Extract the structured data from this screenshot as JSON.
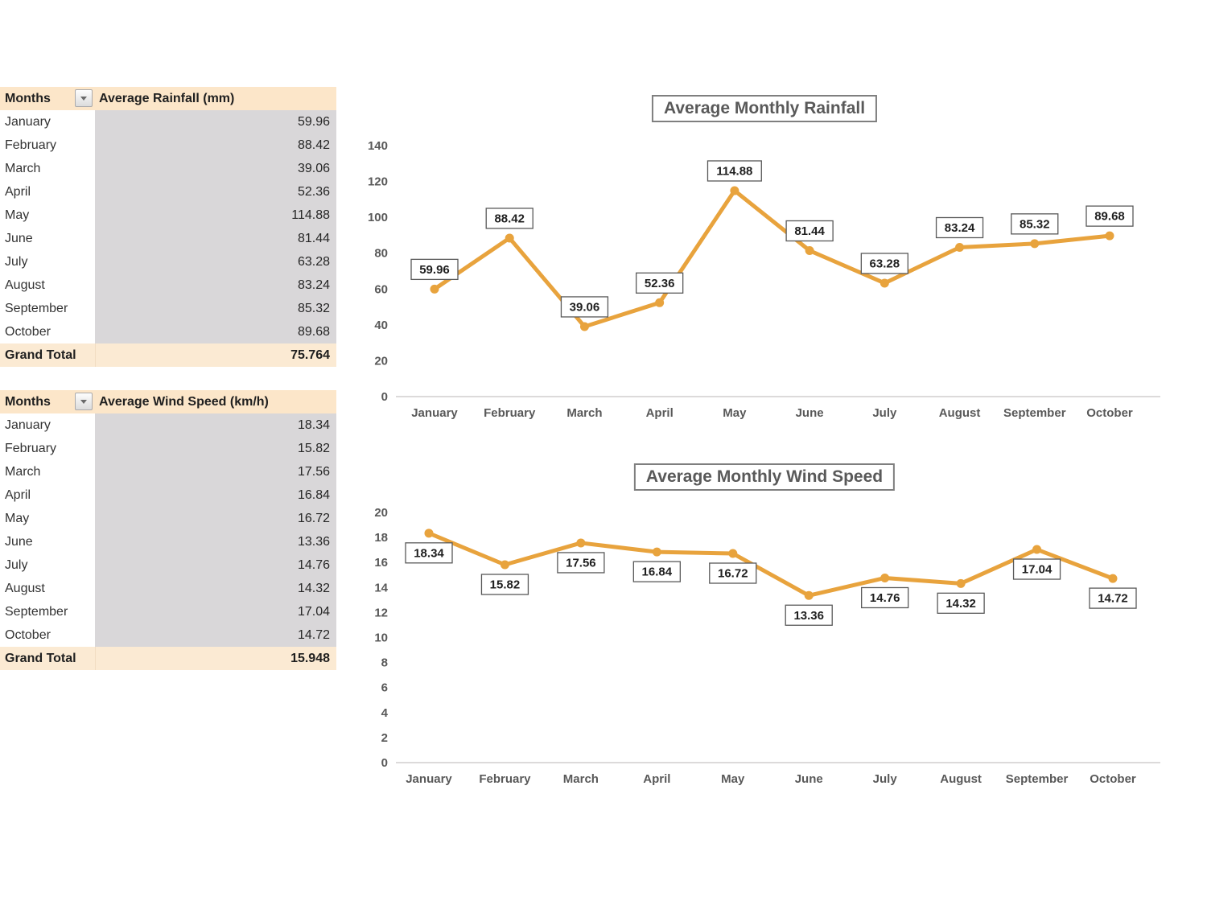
{
  "tables": [
    {
      "header": {
        "months_label": "Months",
        "value_label": "Average Rainfall (mm)"
      },
      "rows": [
        {
          "month": "January",
          "value": "59.96"
        },
        {
          "month": "February",
          "value": "88.42"
        },
        {
          "month": "March",
          "value": "39.06"
        },
        {
          "month": "April",
          "value": "52.36"
        },
        {
          "month": "May",
          "value": "114.88"
        },
        {
          "month": "June",
          "value": "81.44"
        },
        {
          "month": "July",
          "value": "63.28"
        },
        {
          "month": "August",
          "value": "83.24"
        },
        {
          "month": "September",
          "value": "85.32"
        },
        {
          "month": "October",
          "value": "89.68"
        }
      ],
      "total": {
        "label": "Grand Total",
        "value": "75.764"
      }
    },
    {
      "header": {
        "months_label": "Months",
        "value_label": "Average Wind Speed (km/h)"
      },
      "rows": [
        {
          "month": "January",
          "value": "18.34"
        },
        {
          "month": "February",
          "value": "15.82"
        },
        {
          "month": "March",
          "value": "17.56"
        },
        {
          "month": "April",
          "value": "16.84"
        },
        {
          "month": "May",
          "value": "16.72"
        },
        {
          "month": "June",
          "value": "13.36"
        },
        {
          "month": "July",
          "value": "14.76"
        },
        {
          "month": "August",
          "value": "14.32"
        },
        {
          "month": "September",
          "value": "17.04"
        },
        {
          "month": "October",
          "value": "14.72"
        }
      ],
      "total": {
        "label": "Grand Total",
        "value": "15.948"
      }
    }
  ],
  "chart_data": [
    {
      "type": "line",
      "title": "Average Monthly Rainfall",
      "categories": [
        "January",
        "February",
        "March",
        "April",
        "May",
        "June",
        "July",
        "August",
        "September",
        "October"
      ],
      "values": [
        59.96,
        88.42,
        39.06,
        52.36,
        114.88,
        81.44,
        63.28,
        83.24,
        85.32,
        89.68
      ],
      "xlabel": "",
      "ylabel": "",
      "ylim": [
        0,
        140
      ],
      "ytick_step": 20,
      "grid": false,
      "legend": "none",
      "data_labels": "boxed",
      "label_position": "above",
      "line_color": "#E8A33D"
    },
    {
      "type": "line",
      "title": "Average Monthly Wind Speed",
      "categories": [
        "January",
        "February",
        "March",
        "April",
        "May",
        "June",
        "July",
        "August",
        "September",
        "October"
      ],
      "values": [
        18.34,
        15.82,
        17.56,
        16.84,
        16.72,
        13.36,
        14.76,
        14.32,
        17.04,
        14.72
      ],
      "xlabel": "",
      "ylabel": "",
      "ylim": [
        0,
        20
      ],
      "ytick_step": 2,
      "grid": false,
      "legend": "none",
      "data_labels": "boxed",
      "label_position": "below",
      "line_color": "#E8A33D"
    }
  ],
  "colors": {
    "accent_orange": "#E8A33D",
    "pivot_header_bg": "#FCE6C9",
    "pivot_total_bg": "#FBEAD3",
    "value_cell_bg": "#D9D7D9",
    "chart_title_color": "#595959",
    "axis_label_color": "#595959",
    "label_box_border": "#595959",
    "axis_line_color": "#D0CECE",
    "text_dark": "#262626"
  }
}
